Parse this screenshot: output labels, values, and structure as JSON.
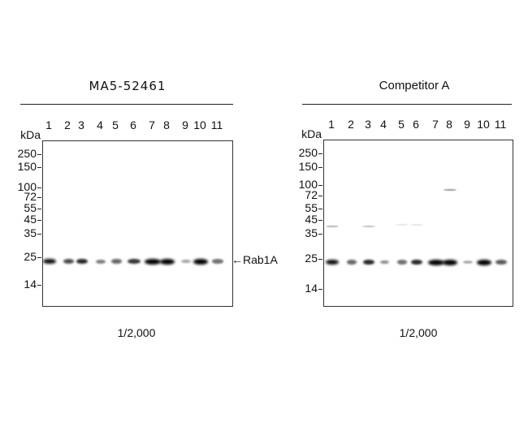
{
  "panels": [
    {
      "title": "MA5-52461",
      "unit": "kDa",
      "lanes": [
        "1",
        "2",
        "3",
        "4",
        "5",
        "6",
        "7",
        "8",
        "9",
        "10",
        "11"
      ],
      "markers": [
        "250",
        "150",
        "100",
        "72",
        "55",
        "45",
        "35",
        "25",
        "14"
      ],
      "dilution": "1/2,000"
    },
    {
      "title": "Competitor A",
      "unit": "kDa",
      "lanes": [
        "1",
        "2",
        "3",
        "4",
        "5",
        "6",
        "7",
        "8",
        "9",
        "10",
        "11"
      ],
      "markers": [
        "250",
        "150",
        "100",
        "72",
        "55",
        "45",
        "35",
        "25",
        "14"
      ],
      "dilution": "1/2,000"
    }
  ],
  "band_label": "Rab1A",
  "band_arrow": "←"
}
